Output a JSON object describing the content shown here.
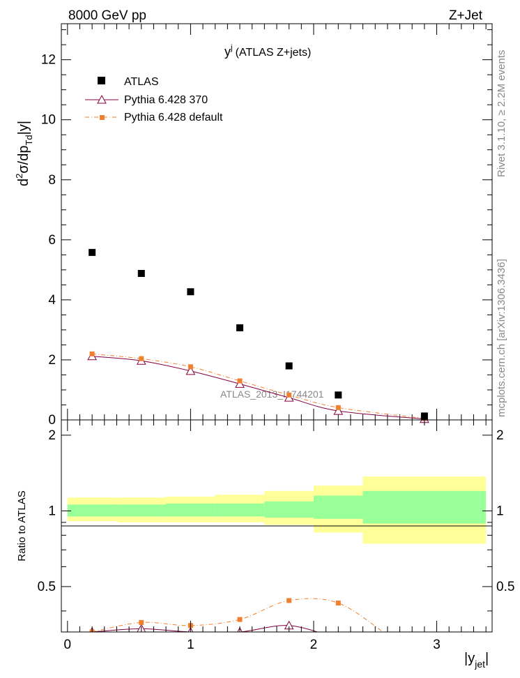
{
  "header": {
    "left": "8000 GeV pp",
    "right": "Z+Jet"
  },
  "side_labels": {
    "rivet": "Rivet 3.1.10, ≥ 2.2M events",
    "mcplots": "mcplots.cern.ch [arXiv:1306.3436]"
  },
  "colors": {
    "atlas": "#000000",
    "pythia_370": "#800040",
    "pythia_default": "#f08030",
    "band_inner": "#99ff99",
    "band_outer": "#ffff99"
  },
  "chart_data": [
    {
      "type": "scatter",
      "title_main": "y",
      "title_sup": "j",
      "title_rest": "(ATLAS Z+jets)",
      "ylabel": "d²σ/dp_Td|y|",
      "ylabel_parts": {
        "a": "d",
        "a_sup": "2",
        "b": "σ/dp",
        "b_sub": "Td",
        "c": "|y|"
      },
      "xlim": [
        -0.05,
        3.45
      ],
      "ylim": [
        0,
        13.2
      ],
      "yticks": [
        "0",
        "2",
        "4",
        "6",
        "8",
        "10",
        "12"
      ],
      "watermark": "ATLAS_2013_I1744201",
      "legend_position": "top-left",
      "series": [
        {
          "name": "ATLAS",
          "marker": "square",
          "x": [
            0.2,
            0.6,
            1.0,
            1.4,
            1.8,
            2.2,
            2.9
          ],
          "y": [
            5.58,
            4.88,
            4.27,
            3.07,
            1.8,
            0.83,
            0.13
          ]
        },
        {
          "name": "Pythia 6.428 370",
          "marker": "triangle",
          "line": "solid",
          "x": [
            0.2,
            0.6,
            1.0,
            1.4,
            1.8,
            2.2,
            2.9
          ],
          "y": [
            2.12,
            1.97,
            1.63,
            1.2,
            0.74,
            0.3,
            0.03
          ]
        },
        {
          "name": "Pythia 6.428 default",
          "marker": "small-square",
          "line": "dash-dot",
          "x": [
            0.2,
            0.6,
            1.0,
            1.4,
            1.8,
            2.2,
            2.9
          ],
          "y": [
            2.2,
            2.04,
            1.77,
            1.3,
            0.83,
            0.41,
            0.05
          ]
        }
      ]
    },
    {
      "type": "line",
      "ylabel": "Ratio to ATLAS",
      "xlabel_main": "|y",
      "xlabel_sub": "jet",
      "xlabel_close": "|",
      "xlim": [
        -0.05,
        3.45
      ],
      "ylim": [
        0.33,
        2.3
      ],
      "xticks": [
        "0",
        "1",
        "2",
        "3"
      ],
      "yticks": [
        "0.5",
        "1",
        "2"
      ],
      "bands": {
        "edges": [
          0.0,
          0.4,
          0.8,
          1.2,
          1.6,
          2.0,
          2.4,
          3.4
        ],
        "inner_lo": [
          0.95,
          0.95,
          0.95,
          0.95,
          0.94,
          0.93,
          0.89
        ],
        "inner_hi": [
          1.06,
          1.06,
          1.07,
          1.07,
          1.09,
          1.15,
          1.2
        ],
        "outer_lo": [
          0.91,
          0.9,
          0.9,
          0.9,
          0.88,
          0.82,
          0.74
        ],
        "outer_hi": [
          1.13,
          1.13,
          1.14,
          1.16,
          1.2,
          1.26,
          1.37
        ]
      },
      "series": [
        {
          "name": "Pythia 6.428 370",
          "x": [
            0.2,
            0.6,
            1.0,
            1.4,
            1.8,
            2.2
          ],
          "y": [
            0.33,
            0.34,
            0.33,
            0.33,
            0.35,
            0.31
          ]
        },
        {
          "name": "Pythia 6.428 default",
          "x": [
            0.2,
            0.6,
            1.0,
            1.4,
            1.8,
            2.2,
            2.6
          ],
          "y": [
            0.33,
            0.36,
            0.35,
            0.37,
            0.44,
            0.43,
            0.32
          ]
        }
      ]
    }
  ]
}
